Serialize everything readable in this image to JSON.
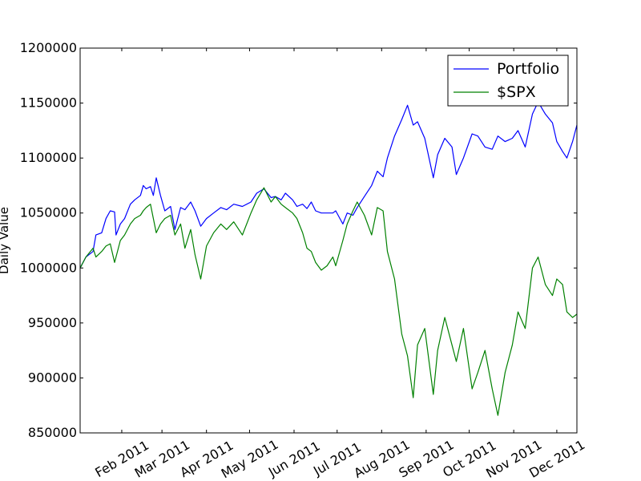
{
  "chart_data": {
    "type": "line",
    "title": "",
    "xlabel": "",
    "ylabel": "Daily Value",
    "x_start": "2011-01-03",
    "x_end": "2011-12-15",
    "xlim": [
      "2011-01-03",
      "2011-12-15"
    ],
    "ylim": [
      850000,
      1200000
    ],
    "yticks": [
      850000,
      900000,
      950000,
      1000000,
      1050000,
      1100000,
      1150000,
      1200000
    ],
    "xticks": [
      {
        "date": "2011-02-01",
        "label": "Feb 2011"
      },
      {
        "date": "2011-03-01",
        "label": "Mar 2011"
      },
      {
        "date": "2011-04-01",
        "label": "Apr 2011"
      },
      {
        "date": "2011-05-01",
        "label": "May 2011"
      },
      {
        "date": "2011-06-01",
        "label": "Jun 2011"
      },
      {
        "date": "2011-07-01",
        "label": "Jul 2011"
      },
      {
        "date": "2011-08-01",
        "label": "Aug 2011"
      },
      {
        "date": "2011-09-01",
        "label": "Sep 2011"
      },
      {
        "date": "2011-10-01",
        "label": "Oct 2011"
      },
      {
        "date": "2011-11-01",
        "label": "Nov 2011"
      },
      {
        "date": "2011-12-01",
        "label": "Dec 2011"
      }
    ],
    "grid": false,
    "legend_position": "top-right",
    "series": [
      {
        "name": "Portfolio",
        "color": "#0000ff",
        "points": [
          [
            "2011-01-03",
            1000000
          ],
          [
            "2011-01-07",
            1010000
          ],
          [
            "2011-01-12",
            1015000
          ],
          [
            "2011-01-14",
            1030000
          ],
          [
            "2011-01-18",
            1032000
          ],
          [
            "2011-01-21",
            1045000
          ],
          [
            "2011-01-24",
            1052000
          ],
          [
            "2011-01-27",
            1051000
          ],
          [
            "2011-01-28",
            1030000
          ],
          [
            "2011-01-31",
            1040000
          ],
          [
            "2011-02-03",
            1045000
          ],
          [
            "2011-02-07",
            1058000
          ],
          [
            "2011-02-10",
            1062000
          ],
          [
            "2011-02-14",
            1066000
          ],
          [
            "2011-02-16",
            1075000
          ],
          [
            "2011-02-18",
            1072000
          ],
          [
            "2011-02-21",
            1074000
          ],
          [
            "2011-02-23",
            1066000
          ],
          [
            "2011-02-25",
            1082000
          ],
          [
            "2011-02-28",
            1066000
          ],
          [
            "2011-03-03",
            1052000
          ],
          [
            "2011-03-07",
            1056000
          ],
          [
            "2011-03-10",
            1035000
          ],
          [
            "2011-03-14",
            1055000
          ],
          [
            "2011-03-17",
            1053000
          ],
          [
            "2011-03-21",
            1060000
          ],
          [
            "2011-03-24",
            1052000
          ],
          [
            "2011-03-28",
            1038000
          ],
          [
            "2011-04-01",
            1045000
          ],
          [
            "2011-04-06",
            1050000
          ],
          [
            "2011-04-11",
            1055000
          ],
          [
            "2011-04-15",
            1053000
          ],
          [
            "2011-04-20",
            1058000
          ],
          [
            "2011-04-26",
            1056000
          ],
          [
            "2011-05-02",
            1060000
          ],
          [
            "2011-05-06",
            1068000
          ],
          [
            "2011-05-11",
            1072000
          ],
          [
            "2011-05-16",
            1064000
          ],
          [
            "2011-05-19",
            1065000
          ],
          [
            "2011-05-23",
            1062000
          ],
          [
            "2011-05-26",
            1068000
          ],
          [
            "2011-05-31",
            1062000
          ],
          [
            "2011-06-03",
            1056000
          ],
          [
            "2011-06-07",
            1058000
          ],
          [
            "2011-06-10",
            1054000
          ],
          [
            "2011-06-13",
            1060000
          ],
          [
            "2011-06-16",
            1052000
          ],
          [
            "2011-06-20",
            1050000
          ],
          [
            "2011-06-24",
            1050000
          ],
          [
            "2011-06-28",
            1050000
          ],
          [
            "2011-06-30",
            1052000
          ],
          [
            "2011-07-05",
            1040000
          ],
          [
            "2011-07-08",
            1050000
          ],
          [
            "2011-07-12",
            1048000
          ],
          [
            "2011-07-15",
            1055000
          ],
          [
            "2011-07-20",
            1065000
          ],
          [
            "2011-07-25",
            1075000
          ],
          [
            "2011-07-29",
            1088000
          ],
          [
            "2011-08-02",
            1083000
          ],
          [
            "2011-08-05",
            1100000
          ],
          [
            "2011-08-10",
            1120000
          ],
          [
            "2011-08-15",
            1135000
          ],
          [
            "2011-08-19",
            1148000
          ],
          [
            "2011-08-23",
            1130000
          ],
          [
            "2011-08-26",
            1133000
          ],
          [
            "2011-08-31",
            1118000
          ],
          [
            "2011-09-06",
            1082000
          ],
          [
            "2011-09-09",
            1103000
          ],
          [
            "2011-09-14",
            1118000
          ],
          [
            "2011-09-19",
            1110000
          ],
          [
            "2011-09-22",
            1085000
          ],
          [
            "2011-09-27",
            1100000
          ],
          [
            "2011-10-03",
            1122000
          ],
          [
            "2011-10-07",
            1120000
          ],
          [
            "2011-10-12",
            1110000
          ],
          [
            "2011-10-17",
            1108000
          ],
          [
            "2011-10-21",
            1120000
          ],
          [
            "2011-10-26",
            1115000
          ],
          [
            "2011-10-31",
            1118000
          ],
          [
            "2011-11-04",
            1125000
          ],
          [
            "2011-11-09",
            1110000
          ],
          [
            "2011-11-14",
            1140000
          ],
          [
            "2011-11-18",
            1151000
          ],
          [
            "2011-11-23",
            1140000
          ],
          [
            "2011-11-28",
            1132000
          ],
          [
            "2011-12-01",
            1115000
          ],
          [
            "2011-12-05",
            1106000
          ],
          [
            "2011-12-08",
            1100000
          ],
          [
            "2011-12-12",
            1115000
          ],
          [
            "2011-12-15",
            1130000
          ]
        ]
      },
      {
        "name": "$SPX",
        "color": "#008000",
        "points": [
          [
            "2011-01-03",
            1000000
          ],
          [
            "2011-01-07",
            1010000
          ],
          [
            "2011-01-12",
            1018000
          ],
          [
            "2011-01-14",
            1010000
          ],
          [
            "2011-01-18",
            1015000
          ],
          [
            "2011-01-21",
            1020000
          ],
          [
            "2011-01-24",
            1022000
          ],
          [
            "2011-01-27",
            1005000
          ],
          [
            "2011-01-28",
            1010000
          ],
          [
            "2011-01-31",
            1025000
          ],
          [
            "2011-02-03",
            1030000
          ],
          [
            "2011-02-07",
            1040000
          ],
          [
            "2011-02-10",
            1045000
          ],
          [
            "2011-02-14",
            1048000
          ],
          [
            "2011-02-16",
            1052000
          ],
          [
            "2011-02-18",
            1055000
          ],
          [
            "2011-02-21",
            1058000
          ],
          [
            "2011-02-23",
            1045000
          ],
          [
            "2011-02-25",
            1032000
          ],
          [
            "2011-02-28",
            1040000
          ],
          [
            "2011-03-03",
            1045000
          ],
          [
            "2011-03-07",
            1048000
          ],
          [
            "2011-03-10",
            1030000
          ],
          [
            "2011-03-14",
            1040000
          ],
          [
            "2011-03-17",
            1018000
          ],
          [
            "2011-03-21",
            1035000
          ],
          [
            "2011-03-24",
            1012000
          ],
          [
            "2011-03-28",
            990000
          ],
          [
            "2011-04-01",
            1020000
          ],
          [
            "2011-04-06",
            1032000
          ],
          [
            "2011-04-11",
            1040000
          ],
          [
            "2011-04-15",
            1035000
          ],
          [
            "2011-04-20",
            1042000
          ],
          [
            "2011-04-26",
            1030000
          ],
          [
            "2011-05-02",
            1050000
          ],
          [
            "2011-05-06",
            1062000
          ],
          [
            "2011-05-11",
            1073000
          ],
          [
            "2011-05-16",
            1060000
          ],
          [
            "2011-05-19",
            1065000
          ],
          [
            "2011-05-23",
            1058000
          ],
          [
            "2011-05-26",
            1055000
          ],
          [
            "2011-05-31",
            1050000
          ],
          [
            "2011-06-03",
            1045000
          ],
          [
            "2011-06-07",
            1032000
          ],
          [
            "2011-06-10",
            1018000
          ],
          [
            "2011-06-13",
            1015000
          ],
          [
            "2011-06-16",
            1005000
          ],
          [
            "2011-06-20",
            998000
          ],
          [
            "2011-06-24",
            1002000
          ],
          [
            "2011-06-28",
            1010000
          ],
          [
            "2011-06-30",
            1002000
          ],
          [
            "2011-07-05",
            1025000
          ],
          [
            "2011-07-08",
            1040000
          ],
          [
            "2011-07-12",
            1052000
          ],
          [
            "2011-07-15",
            1060000
          ],
          [
            "2011-07-20",
            1048000
          ],
          [
            "2011-07-25",
            1030000
          ],
          [
            "2011-07-29",
            1055000
          ],
          [
            "2011-08-02",
            1052000
          ],
          [
            "2011-08-05",
            1015000
          ],
          [
            "2011-08-10",
            990000
          ],
          [
            "2011-08-15",
            940000
          ],
          [
            "2011-08-19",
            920000
          ],
          [
            "2011-08-23",
            882000
          ],
          [
            "2011-08-26",
            930000
          ],
          [
            "2011-08-31",
            945000
          ],
          [
            "2011-09-06",
            885000
          ],
          [
            "2011-09-09",
            925000
          ],
          [
            "2011-09-14",
            955000
          ],
          [
            "2011-09-19",
            930000
          ],
          [
            "2011-09-22",
            915000
          ],
          [
            "2011-09-27",
            945000
          ],
          [
            "2011-10-03",
            890000
          ],
          [
            "2011-10-07",
            905000
          ],
          [
            "2011-10-12",
            925000
          ],
          [
            "2011-10-17",
            890000
          ],
          [
            "2011-10-21",
            866000
          ],
          [
            "2011-10-26",
            905000
          ],
          [
            "2011-10-31",
            930000
          ],
          [
            "2011-11-04",
            960000
          ],
          [
            "2011-11-09",
            945000
          ],
          [
            "2011-11-14",
            1000000
          ],
          [
            "2011-11-18",
            1010000
          ],
          [
            "2011-11-23",
            985000
          ],
          [
            "2011-11-28",
            975000
          ],
          [
            "2011-12-01",
            990000
          ],
          [
            "2011-12-05",
            985000
          ],
          [
            "2011-12-08",
            960000
          ],
          [
            "2011-12-12",
            955000
          ],
          [
            "2011-12-15",
            958000
          ]
        ]
      }
    ]
  }
}
